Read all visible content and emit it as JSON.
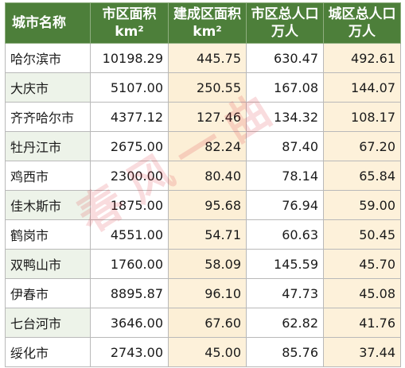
{
  "headers": {
    "city": "城市名称",
    "urban_area_line1": "市区面积",
    "urban_area_line2": "km²",
    "built_area_line1": "建成区面积",
    "built_area_line2": "km²",
    "urban_pop_line1": "市区总人口",
    "urban_pop_line2": "万人",
    "town_pop_line1": "城区总人口",
    "town_pop_line2": "万人"
  },
  "rows": [
    {
      "city": "哈尔滨市",
      "urban_area": "10198.29",
      "built_area": "445.75",
      "urban_pop": "630.47",
      "town_pop": "492.61"
    },
    {
      "city": "大庆市",
      "urban_area": "5107.00",
      "built_area": "250.55",
      "urban_pop": "167.08",
      "town_pop": "144.07"
    },
    {
      "city": "齐齐哈尔市",
      "urban_area": "4377.12",
      "built_area": "127.46",
      "urban_pop": "134.32",
      "town_pop": "108.17"
    },
    {
      "city": "牡丹江市",
      "urban_area": "2675.00",
      "built_area": "82.24",
      "urban_pop": "87.40",
      "town_pop": "67.20"
    },
    {
      "city": "鸡西市",
      "urban_area": "2300.00",
      "built_area": "80.40",
      "urban_pop": "78.14",
      "town_pop": "65.84"
    },
    {
      "city": "佳木斯市",
      "urban_area": "1875.00",
      "built_area": "95.68",
      "urban_pop": "76.94",
      "town_pop": "59.00"
    },
    {
      "city": "鹤岗市",
      "urban_area": "4551.00",
      "built_area": "54.71",
      "urban_pop": "60.63",
      "town_pop": "50.45"
    },
    {
      "city": "双鸭山市",
      "urban_area": "1760.00",
      "built_area": "58.09",
      "urban_pop": "145.59",
      "town_pop": "45.70"
    },
    {
      "city": "伊春市",
      "urban_area": "8895.87",
      "built_area": "96.10",
      "urban_pop": "47.73",
      "town_pop": "45.08"
    },
    {
      "city": "七台河市",
      "urban_area": "3646.00",
      "built_area": "67.60",
      "urban_pop": "62.82",
      "town_pop": "41.76"
    },
    {
      "city": "绥化市",
      "urban_area": "2743.00",
      "built_area": "45.00",
      "urban_pop": "85.76",
      "town_pop": "37.44"
    }
  ],
  "watermark": "春风一曲",
  "colors": {
    "header_bg": "#4d7f3a",
    "row_tint": "#edf3e9",
    "column_tint": "#fdf1da"
  }
}
